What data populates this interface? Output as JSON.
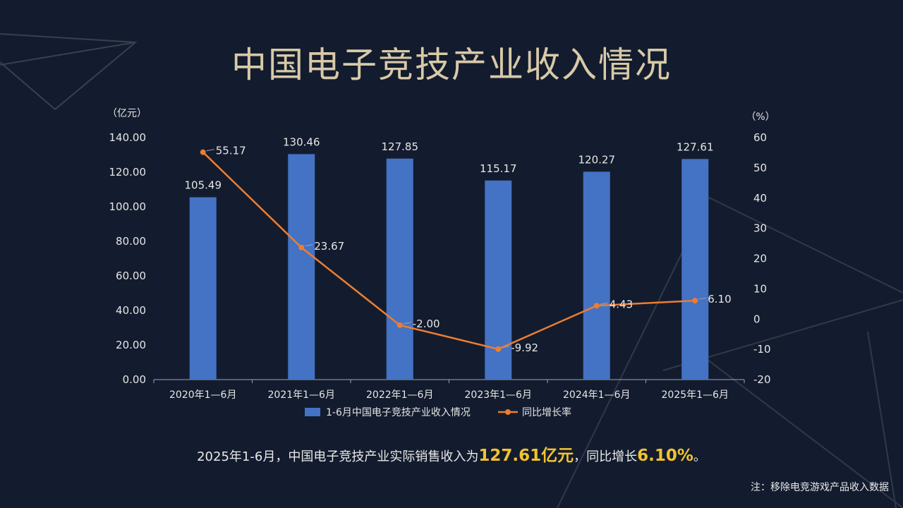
{
  "title": "中国电子竞技产业收入情况",
  "chart_data": {
    "type": "bar",
    "categories": [
      "2020年1—6月",
      "2021年1—6月",
      "2022年1—6月",
      "2023年1—6月",
      "2024年1—6月",
      "2025年1—6月"
    ],
    "series": [
      {
        "name": "1-6月中国电子竞技产业收入情况",
        "type": "bar",
        "axis": "left",
        "values": [
          105.49,
          130.46,
          127.85,
          115.17,
          120.27,
          127.61
        ],
        "labels": [
          "105.49",
          "130.46",
          "127.85",
          "115.17",
          "120.27",
          "127.61"
        ]
      },
      {
        "name": "同比增长率",
        "type": "line",
        "axis": "right",
        "values": [
          55.17,
          23.67,
          -2.0,
          -9.92,
          4.43,
          6.1
        ],
        "labels": [
          "55.17",
          "23.67",
          "-2.00",
          "-9.92",
          "4.43",
          "6.10"
        ]
      }
    ],
    "y_left": {
      "unit_label": "（亿元）",
      "ylim": [
        0,
        140
      ],
      "ticks": [
        0,
        20,
        40,
        60,
        80,
        100,
        120,
        140
      ],
      "tick_labels": [
        "0.00",
        "20.00",
        "40.00",
        "60.00",
        "80.00",
        "100.00",
        "120.00",
        "140.00"
      ]
    },
    "y_right": {
      "unit_label": "（%）",
      "ylim": [
        -20,
        60
      ],
      "ticks": [
        -20,
        -10,
        0,
        10,
        20,
        30,
        40,
        50,
        60
      ],
      "tick_labels": [
        "-20",
        "-10",
        "0",
        "10",
        "20",
        "30",
        "40",
        "50",
        "60"
      ]
    },
    "grid": false,
    "legend": "bottom-center",
    "colors": {
      "bar": "#4472c4",
      "line": "#ed7d31",
      "text": "#e6e6e6",
      "axis": "#9aa3b5"
    }
  },
  "summary": {
    "prefix": "2025年1-6月，中国电子竞技产业实际销售收入为",
    "revenue": "127.61亿元",
    "middle": "，同比增长",
    "growth": "6.10%",
    "suffix": "。"
  },
  "note": "注：移除电竞游戏产品收入数据"
}
